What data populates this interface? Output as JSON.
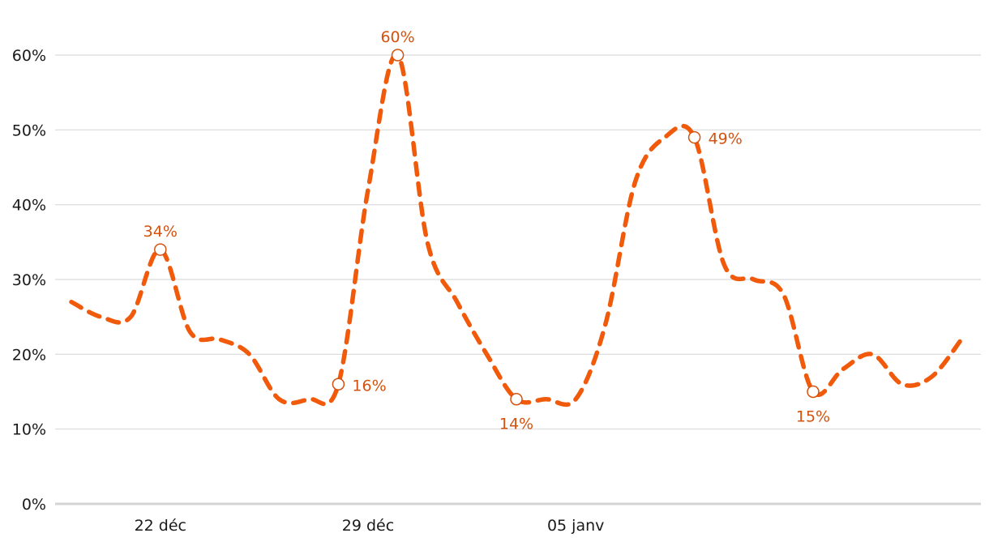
{
  "colors": {
    "line": "#f05a0a",
    "label": "#d4520e",
    "grid": "#d9d9d9"
  },
  "chart_data": {
    "type": "line",
    "title": "",
    "xlabel": "",
    "ylabel": "",
    "ylim": [
      0,
      60
    ],
    "y_ticks": [
      "0%",
      "10%",
      "20%",
      "30%",
      "40%",
      "50%",
      "60%"
    ],
    "x_ticks": [
      {
        "index": 3,
        "label": "22 déc"
      },
      {
        "index": 10,
        "label": "29 déc"
      },
      {
        "index": 17,
        "label": "05 janv"
      }
    ],
    "grid": true,
    "series": [
      {
        "line_style": "dashed",
        "values": [
          27,
          25,
          25,
          34,
          23,
          22,
          20,
          14,
          14,
          16,
          42,
          60,
          35,
          27,
          20,
          14,
          14,
          14,
          24,
          43,
          49,
          49,
          32,
          30,
          28,
          15,
          18,
          20,
          16,
          17,
          22
        ]
      }
    ],
    "data_labels": [
      {
        "index": 3,
        "value": 34,
        "text": "34%",
        "position": "above"
      },
      {
        "index": 9,
        "value": 16,
        "text": "16%",
        "position": "right"
      },
      {
        "index": 11,
        "value": 60,
        "text": "60%",
        "position": "above"
      },
      {
        "index": 15,
        "value": 14,
        "text": "14%",
        "position": "below"
      },
      {
        "index": 21,
        "value": 49,
        "text": "49%",
        "position": "right"
      },
      {
        "index": 25,
        "value": 15,
        "text": "15%",
        "position": "below"
      }
    ]
  }
}
